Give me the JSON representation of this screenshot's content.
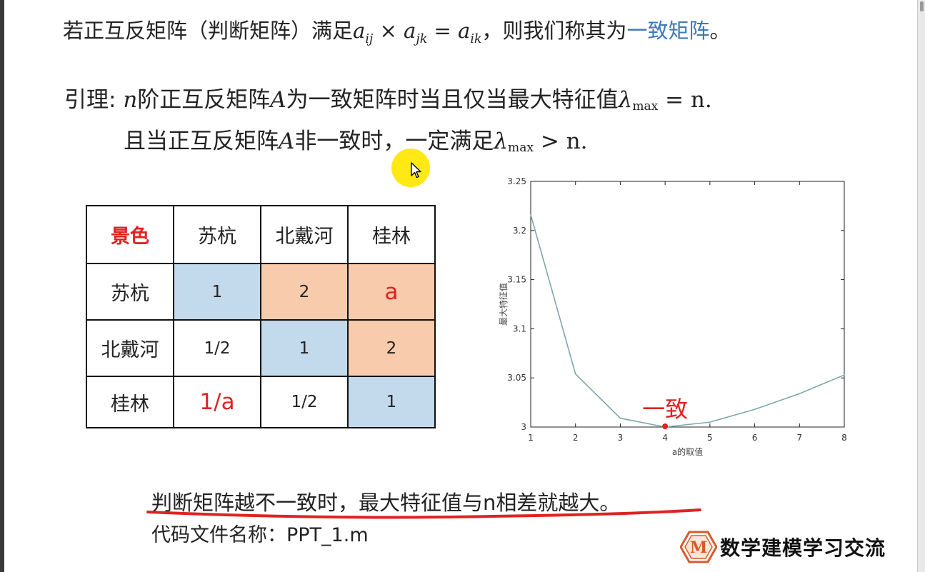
{
  "slide": {
    "definition": {
      "prefix": "若正互反矩阵（判断矩阵）满足",
      "formula_a1": "a",
      "formula_s1": "ij",
      "formula_op": " × ",
      "formula_a2": "a",
      "formula_s2": "jk",
      "formula_eq": " = ",
      "formula_a3": "a",
      "formula_s3": "ik",
      "mid": "，则我们称其为",
      "term": "一致矩阵",
      "suffix": "。"
    },
    "lemma": {
      "label": "引理: ",
      "l1_n": "n",
      "l1_text1": "阶正互反矩阵",
      "l1_A": "A",
      "l1_text2": "为一致矩阵时当且仅当最大特征值",
      "lambda": "λ",
      "max": "max",
      "l1_end": " = n.",
      "l2_text1": "且当正互反矩阵",
      "l2_A": "A",
      "l2_text2": "非一致时，一定满足",
      "l2_end": " > n."
    },
    "table": {
      "corner": "景色",
      "headers": [
        "苏杭",
        "北戴河",
        "桂林"
      ],
      "rows": [
        {
          "label": "苏杭",
          "cells": [
            "1",
            "2",
            "a"
          ]
        },
        {
          "label": "北戴河",
          "cells": [
            "1/2",
            "1",
            "2"
          ]
        },
        {
          "label": "桂林",
          "cells": [
            "1/a",
            "1/2",
            "1"
          ]
        }
      ]
    },
    "conclusion": "判断矩阵越不一致时，最大特征值与n相差就越大。",
    "code_file": "代码文件名称：PPT_1.m",
    "logo_text": "数学建模学习交流",
    "logo_letter": "M"
  },
  "chart_data": {
    "type": "line",
    "x": [
      1,
      2,
      3,
      4,
      5,
      6,
      7,
      8
    ],
    "values": [
      3.216,
      3.054,
      3.009,
      3.0,
      3.005,
      3.018,
      3.034,
      3.053
    ],
    "xlabel": "a的取值",
    "ylabel": "最大特征值",
    "xlim": [
      1,
      8
    ],
    "ylim": [
      3,
      3.25
    ],
    "xticks": [
      "1",
      "2",
      "3",
      "4",
      "5",
      "6",
      "7",
      "8"
    ],
    "yticks": [
      "3",
      "3.05",
      "3.1",
      "3.15",
      "3.2",
      "3.25"
    ],
    "line_color": "#7fa7aa",
    "annotation": {
      "x": 4,
      "y": 3.0,
      "text": "一致",
      "color": "#e02222"
    },
    "grid": false
  },
  "colors": {
    "accent_blue": "#3e78b8",
    "cell_blue": "#c3d9ec",
    "cell_orange": "#f7cbab",
    "red": "#e02222"
  }
}
